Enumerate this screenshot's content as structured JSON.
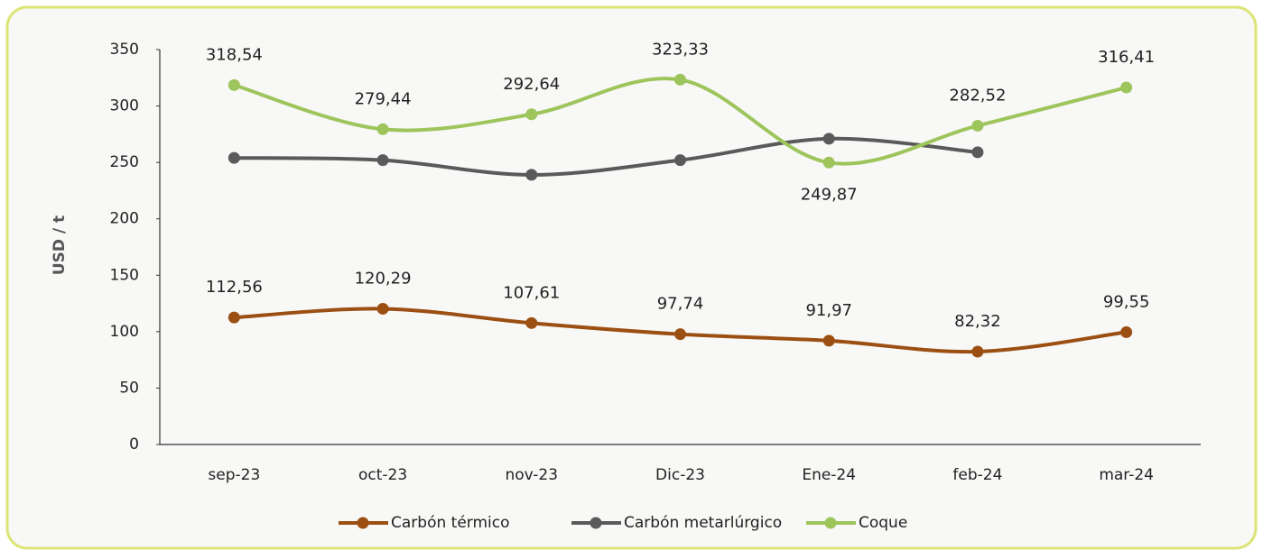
{
  "chart_data": {
    "type": "line",
    "y_label": "USD / t",
    "categories": [
      "sep-23",
      "oct-23",
      "nov-23",
      "Dic-23",
      "Ene-24",
      "feb-24",
      "mar-24"
    ],
    "ylim": [
      0,
      350
    ],
    "yticks": [
      0,
      50,
      100,
      150,
      200,
      250,
      300,
      350
    ],
    "smooth": true,
    "legend": "bottom",
    "series": [
      {
        "name": "Carbón térmico",
        "color": "#9c4f12",
        "values": [
          112.56,
          120.29,
          107.61,
          97.74,
          91.97,
          82.32,
          99.55
        ],
        "value_labels": [
          "112,56",
          "120,29",
          "107,61",
          "97,74",
          "91,97",
          "82,32",
          "99,55"
        ]
      },
      {
        "name": "Carbón metarlúrgico",
        "color": "#5a5a5a",
        "values": [
          254,
          252,
          239,
          252,
          271,
          259,
          null
        ]
      },
      {
        "name": "Coque",
        "color": "#9dc55b",
        "values": [
          318.54,
          279.44,
          292.64,
          323.33,
          249.87,
          282.52,
          316.41
        ],
        "value_labels": [
          "318,54",
          "279,44",
          "292,64",
          "323,33",
          "249,87",
          "282,52",
          "316,41"
        ]
      }
    ]
  }
}
